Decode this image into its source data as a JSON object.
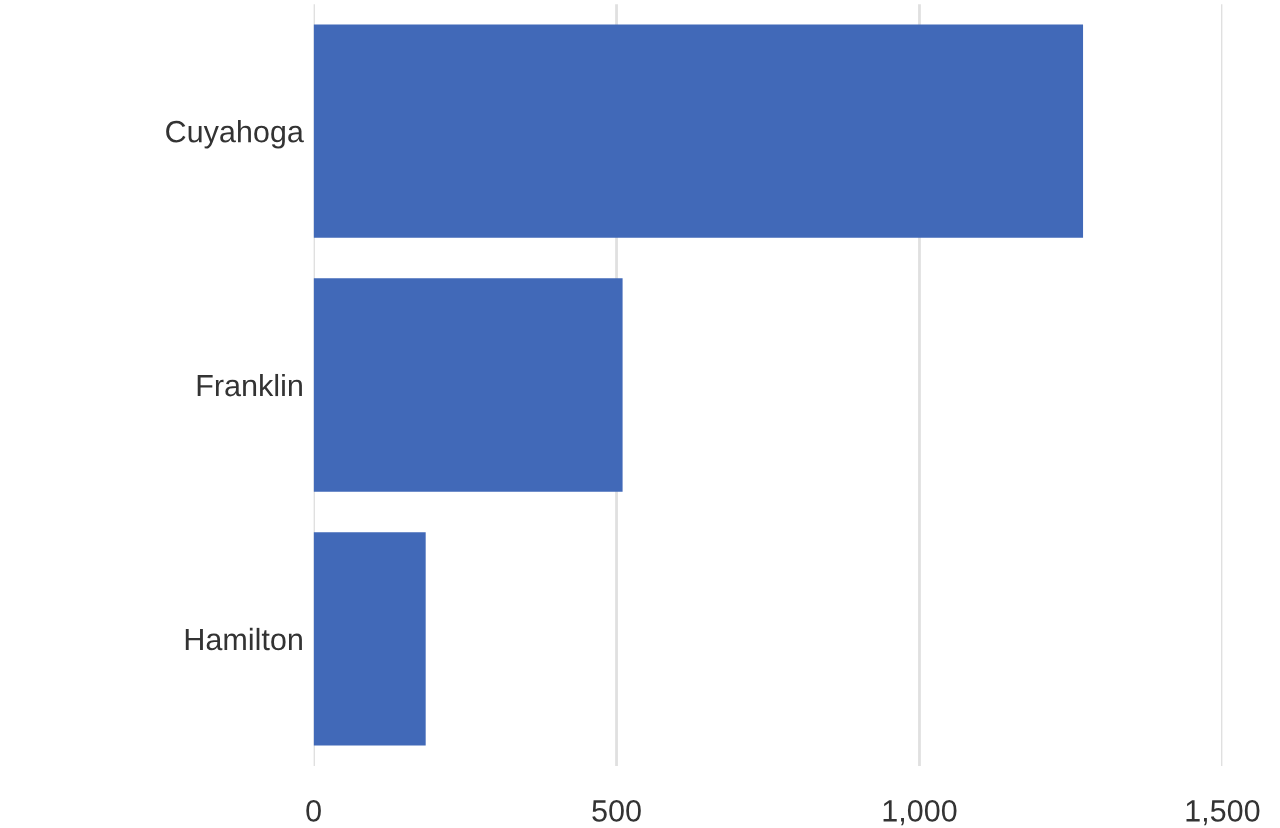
{
  "chart_data": {
    "type": "bar",
    "orientation": "horizontal",
    "categories": [
      "Cuyahoga",
      "Franklin",
      "Hamilton"
    ],
    "values": [
      1270,
      510,
      185
    ],
    "color": "#4169b8",
    "xlim": [
      0,
      1500
    ],
    "xticks": [
      0,
      {
        "value": 500,
        "label": "500"
      },
      {
        "value": 1000,
        "label": "1,000"
      },
      {
        "value": 1500,
        "label": "1,500"
      }
    ],
    "grid": "x",
    "legend": false
  }
}
